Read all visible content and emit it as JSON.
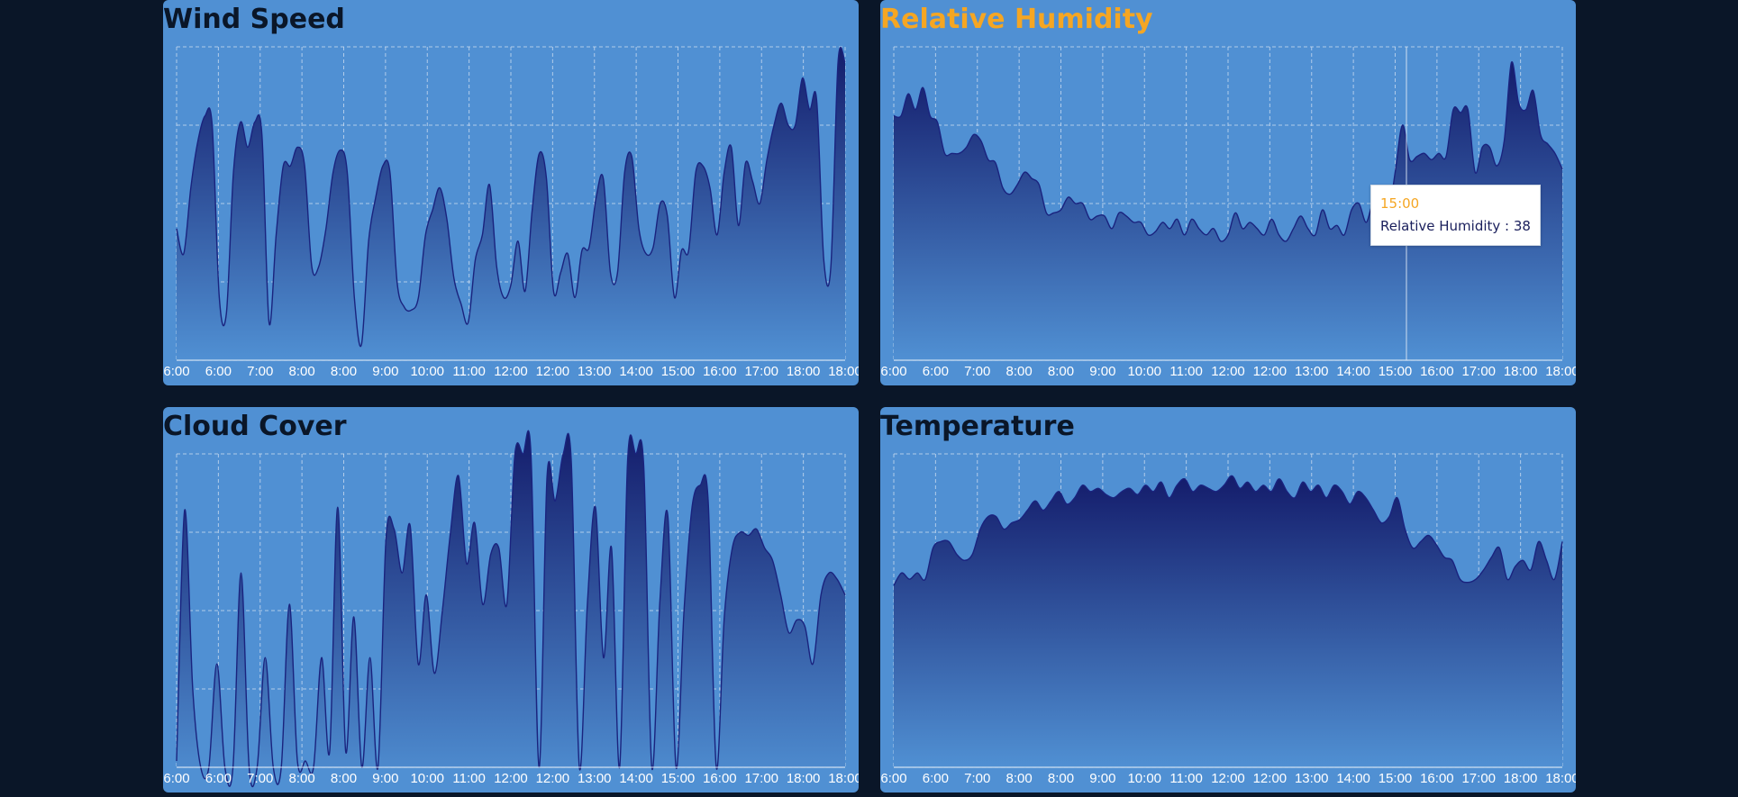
{
  "colors": {
    "background": "#0a1628",
    "panel": "#5090d3",
    "title": "#0a1628",
    "active_title": "#f5a623",
    "area_top": "#141c6b",
    "area_bottom": "#5090d3",
    "line": "#1a237e",
    "grid": "#c8daf0",
    "tick": "#ffffff",
    "tooltip_label": "#f5a623",
    "tooltip_value": "#1a1f5c"
  },
  "tooltip": {
    "label": "15:00",
    "text": "Relative Humidity : 38"
  },
  "chart_data": [
    {
      "type": "area",
      "title": "Wind Speed",
      "active": false,
      "x_tick_labels": [
        "6:00",
        "6:00",
        "7:00",
        "8:00",
        "8:00",
        "9:00",
        "10:00",
        "11:00",
        "12:00",
        "12:00",
        "13:00",
        "14:00",
        "15:00",
        "16:00",
        "17:00",
        "18:00",
        "18:00"
      ],
      "ylim": [
        0,
        100
      ],
      "grid": true,
      "values": [
        42,
        34,
        55,
        70,
        78,
        75,
        20,
        15,
        60,
        76,
        68,
        76,
        72,
        12,
        40,
        62,
        62,
        68,
        62,
        30,
        30,
        42,
        60,
        67,
        60,
        20,
        5,
        38,
        52,
        62,
        60,
        25,
        17,
        16,
        20,
        40,
        48,
        55,
        45,
        26,
        18,
        12,
        32,
        40,
        56,
        30,
        20,
        24,
        38,
        22,
        48,
        66,
        58,
        22,
        28,
        34,
        20,
        35,
        36,
        52,
        58,
        28,
        28,
        60,
        65,
        42,
        34,
        36,
        50,
        46,
        20,
        35,
        35,
        60,
        62,
        55,
        40,
        60,
        68,
        43,
        63,
        57,
        50,
        64,
        75,
        82,
        75,
        75,
        90,
        80,
        83,
        32,
        30,
        95,
        95
      ]
    },
    {
      "type": "area",
      "title": "Relative Humidity",
      "active": true,
      "x_tick_labels": [
        "6:00",
        "6:00",
        "7:00",
        "8:00",
        "8:00",
        "9:00",
        "10:00",
        "11:00",
        "12:00",
        "12:00",
        "13:00",
        "14:00",
        "15:00",
        "16:00",
        "17:00",
        "18:00",
        "18:00"
      ],
      "ylim": [
        0,
        100
      ],
      "grid": true,
      "values": [
        78,
        78,
        85,
        80,
        87,
        78,
        76,
        66,
        66,
        66,
        68,
        72,
        70,
        64,
        63,
        55,
        53,
        56,
        60,
        58,
        56,
        47,
        47,
        48,
        52,
        50,
        50,
        45,
        46,
        46,
        42,
        47,
        46,
        44,
        44,
        40,
        41,
        44,
        42,
        45,
        40,
        45,
        42,
        40,
        42,
        38,
        40,
        47,
        42,
        44,
        42,
        40,
        45,
        40,
        38,
        42,
        46,
        42,
        40,
        48,
        42,
        43,
        40,
        48,
        50,
        44,
        50,
        44,
        45,
        60,
        75,
        64,
        65,
        66,
        64,
        66,
        65,
        80,
        79,
        80,
        60,
        68,
        68,
        62,
        70,
        95,
        82,
        80,
        86,
        72,
        69,
        66,
        61
      ]
    },
    {
      "type": "area",
      "title": "Cloud Cover",
      "active": false,
      "x_tick_labels": [
        "6:00",
        "6:00",
        "7:00",
        "8:00",
        "8:00",
        "9:00",
        "10:00",
        "11:00",
        "12:00",
        "12:00",
        "13:00",
        "14:00",
        "15:00",
        "16:00",
        "17:00",
        "18:00",
        "18:00"
      ],
      "ylim": [
        0,
        100
      ],
      "grid": true,
      "values": [
        2,
        82,
        25,
        0,
        0,
        33,
        0,
        0,
        62,
        0,
        0,
        35,
        0,
        0,
        52,
        2,
        2,
        0,
        35,
        5,
        83,
        5,
        48,
        0,
        35,
        0,
        73,
        76,
        62,
        77,
        33,
        55,
        30,
        50,
        75,
        93,
        65,
        78,
        52,
        68,
        70,
        52,
        100,
        100,
        100,
        0,
        93,
        85,
        100,
        98,
        0,
        52,
        83,
        35,
        70,
        0,
        98,
        100,
        96,
        0,
        53,
        80,
        0,
        50,
        83,
        90,
        85,
        0,
        48,
        70,
        75,
        74,
        76,
        70,
        66,
        55,
        43,
        47,
        45,
        33,
        55,
        62,
        60,
        55
      ]
    },
    {
      "type": "area",
      "title": "Temperature",
      "active": false,
      "x_tick_labels": [
        "6:00",
        "6:00",
        "7:00",
        "8:00",
        "8:00",
        "9:00",
        "10:00",
        "11:00",
        "12:00",
        "12:00",
        "13:00",
        "14:00",
        "15:00",
        "16:00",
        "17:00",
        "18:00",
        "18:00"
      ],
      "ylim": [
        0,
        100
      ],
      "grid": true,
      "values": [
        58,
        62,
        60,
        62,
        60,
        70,
        72,
        72,
        68,
        66,
        68,
        76,
        80,
        80,
        76,
        78,
        79,
        82,
        85,
        82,
        85,
        88,
        84,
        86,
        90,
        88,
        89,
        87,
        86,
        88,
        89,
        87,
        90,
        88,
        91,
        86,
        90,
        92,
        88,
        90,
        89,
        88,
        90,
        93,
        89,
        91,
        88,
        90,
        88,
        92,
        88,
        86,
        91,
        88,
        90,
        86,
        90,
        88,
        84,
        88,
        86,
        82,
        78,
        80,
        86,
        76,
        70,
        72,
        74,
        71,
        67,
        66,
        60,
        59,
        60,
        63,
        67,
        70,
        60,
        64,
        66,
        63,
        72,
        66,
        60,
        72
      ]
    }
  ]
}
